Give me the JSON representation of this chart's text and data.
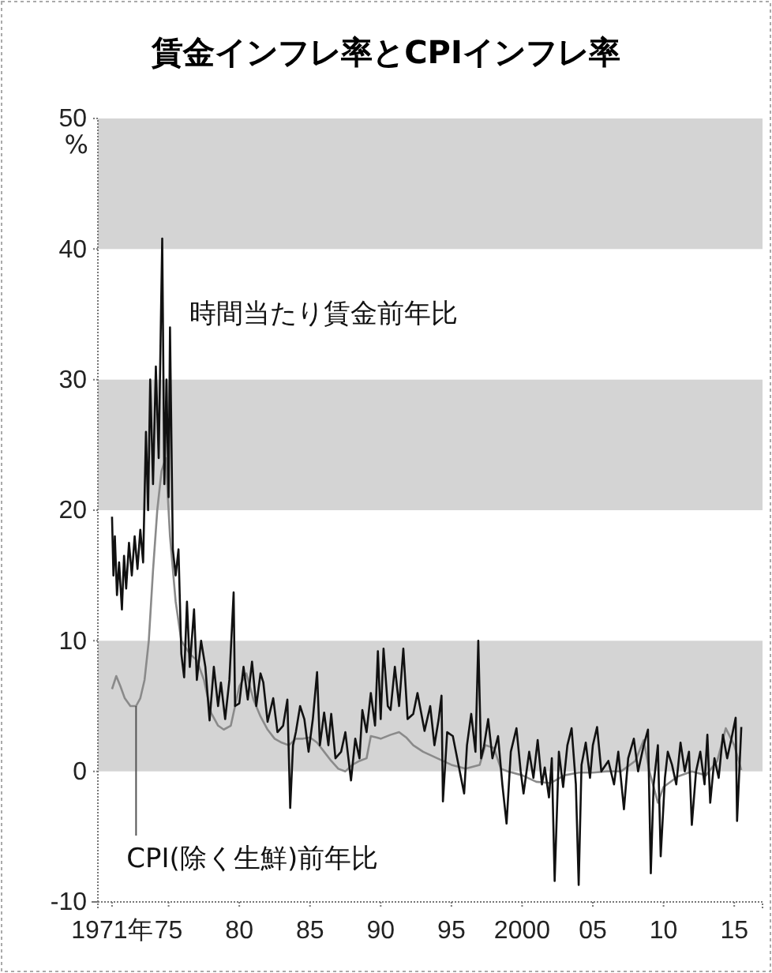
{
  "chart_data": {
    "type": "line",
    "title": "賃金インフレ率とCPIインフレ率",
    "ylabel": "%",
    "xlim": [
      1970,
      2017
    ],
    "xticks": [
      {
        "value": 1971,
        "label": "1971年"
      },
      {
        "value": 1975,
        "label": "75"
      },
      {
        "value": 1980,
        "label": "80"
      },
      {
        "value": 1985,
        "label": "85"
      },
      {
        "value": 1990,
        "label": "90"
      },
      {
        "value": 1995,
        "label": "95"
      },
      {
        "value": 2000,
        "label": "2000"
      },
      {
        "value": 2005,
        "label": "05"
      },
      {
        "value": 2010,
        "label": "10"
      },
      {
        "value": 2015,
        "label": "15"
      }
    ],
    "ylim": [
      -10,
      50
    ],
    "yticks": [
      -10,
      0,
      10,
      20,
      30,
      40,
      50
    ],
    "bands": [
      {
        "axis": "y",
        "from": 40,
        "to": 50,
        "color": "#d4d4d4"
      },
      {
        "axis": "y",
        "from": 20,
        "to": 30,
        "color": "#d4d4d4"
      },
      {
        "axis": "y",
        "from": 0,
        "to": 10,
        "color": "#d4d4d4"
      }
    ],
    "grid": false,
    "marker": "none",
    "line_style": "solid",
    "series": [
      {
        "color": "#8a8a8a",
        "x": [
          1971.0,
          1971.3,
          1971.6,
          1971.9,
          1972.3,
          1972.7,
          1973.0,
          1973.3,
          1973.6,
          1973.9,
          1974.2,
          1974.5,
          1974.8,
          1975.1,
          1975.5,
          1975.9,
          1976.5,
          1977.0,
          1977.5,
          1978.0,
          1978.5,
          1978.9,
          1979.4,
          1980.0,
          1980.5,
          1981.0,
          1981.5,
          1982.0,
          1982.5,
          1983.0,
          1983.5,
          1984.0,
          1984.5,
          1985.0,
          1985.5,
          1986.0,
          1986.5,
          1987.0,
          1987.5,
          1988.0,
          1988.5,
          1989.0,
          1989.3,
          1989.7,
          1990.0,
          1990.7,
          1991.3,
          1991.8,
          1992.3,
          1993.0,
          1994.0,
          1995.0,
          1996.0,
          1997.0,
          1997.4,
          1998.0,
          1998.5,
          1999.0,
          2000.0,
          2001.0,
          2002.0,
          2003.0,
          2004.0,
          2005.0,
          2006.0,
          2007.0,
          2008.0,
          2008.6,
          2009.0,
          2009.6,
          2010.0,
          2011.0,
          2012.0,
          2013.0,
          2013.8,
          2014.4,
          2015.0,
          2015.5
        ],
        "values": [
          6.3,
          7.3,
          6.5,
          5.6,
          5.0,
          5.0,
          5.6,
          7,
          10,
          15.4,
          20,
          23,
          24,
          18,
          13,
          10,
          9,
          8.5,
          7,
          4.5,
          3.5,
          3.2,
          3.5,
          6.5,
          7.5,
          5.5,
          4.2,
          3.2,
          2.5,
          2.2,
          2.0,
          2.5,
          2.5,
          2.6,
          2.2,
          1.5,
          0.8,
          0.2,
          0.0,
          0.5,
          0.8,
          1.0,
          2.7,
          2.6,
          2.5,
          2.8,
          3.0,
          2.6,
          2.0,
          1.5,
          1.0,
          0.5,
          0.2,
          0.5,
          2.0,
          1.8,
          0.2,
          0.0,
          -0.3,
          -0.8,
          -0.9,
          -0.3,
          -0.1,
          -0.1,
          0.0,
          0.0,
          0.8,
          2.4,
          0.0,
          -2.4,
          -1.2,
          -0.4,
          0.0,
          -0.3,
          0.8,
          3.3,
          2.0,
          0.1
        ]
      },
      {
        "color": "#111111",
        "x": [
          1971.0,
          1971.1,
          1971.2,
          1971.35,
          1971.5,
          1971.7,
          1971.85,
          1972.0,
          1972.2,
          1972.4,
          1972.6,
          1972.8,
          1973.0,
          1973.2,
          1973.4,
          1973.55,
          1973.7,
          1973.9,
          1974.1,
          1974.3,
          1974.55,
          1974.7,
          1974.85,
          1975.0,
          1975.1,
          1975.3,
          1975.5,
          1975.7,
          1975.9,
          1976.1,
          1976.3,
          1976.5,
          1976.8,
          1977.0,
          1977.3,
          1977.6,
          1977.9,
          1978.2,
          1978.5,
          1978.7,
          1979.0,
          1979.3,
          1979.6,
          1979.7,
          1980.0,
          1980.3,
          1980.6,
          1980.9,
          1981.2,
          1981.5,
          1981.7,
          1982.0,
          1982.4,
          1982.7,
          1983.1,
          1983.4,
          1983.6,
          1983.8,
          1984.0,
          1984.3,
          1984.6,
          1984.9,
          1985.2,
          1985.5,
          1985.7,
          1986.0,
          1986.3,
          1986.5,
          1986.8,
          1987.2,
          1987.5,
          1987.9,
          1988.2,
          1988.5,
          1988.7,
          1989.0,
          1989.3,
          1989.6,
          1989.8,
          1990.0,
          1990.2,
          1990.5,
          1990.7,
          1991.0,
          1991.3,
          1991.6,
          1991.9,
          1992.3,
          1992.6,
          1993.1,
          1993.5,
          1993.8,
          1994.1,
          1994.3,
          1994.4,
          1994.7,
          1995.1,
          1995.5,
          1995.9,
          1996.1,
          1996.4,
          1996.7,
          1996.9,
          1997.1,
          1997.3,
          1997.6,
          1997.9,
          1998.3,
          1998.6,
          1998.9,
          1999.2,
          1999.6,
          1999.9,
          2000.1,
          2000.5,
          2000.8,
          2001.1,
          2001.4,
          2001.6,
          2001.9,
          2002.1,
          2002.3,
          2002.6,
          2002.9,
          2003.2,
          2003.5,
          2003.8,
          2004.0,
          2004.2,
          2004.5,
          2004.8,
          2005.0,
          2005.3,
          2005.6,
          2006.1,
          2006.5,
          2006.8,
          2007.2,
          2007.5,
          2007.9,
          2008.2,
          2008.6,
          2008.9,
          2009.1,
          2009.3,
          2009.6,
          2009.8,
          2010.1,
          2010.3,
          2010.6,
          2010.9,
          2011.2,
          2011.5,
          2011.8,
          2012.0,
          2012.3,
          2012.6,
          2012.9,
          2013.1,
          2013.3,
          2013.6,
          2013.9,
          2014.2,
          2014.5,
          2014.8,
          2015.1,
          2015.2,
          2015.5
        ],
        "values": [
          19.5,
          15,
          18,
          13.5,
          16,
          12.4,
          16.5,
          14,
          17.5,
          15,
          18,
          15.5,
          18.5,
          16,
          26,
          20,
          30,
          22,
          31,
          24,
          40.8,
          22,
          30,
          21,
          34,
          17,
          15,
          17,
          9,
          7.2,
          13,
          8,
          12.4,
          7,
          10,
          8,
          3.9,
          8,
          5,
          6.8,
          4,
          7,
          13.7,
          5,
          5.2,
          8,
          5.5,
          8.4,
          5,
          7.5,
          6.8,
          3.8,
          5.6,
          3,
          3.5,
          5.5,
          -2.8,
          2,
          3,
          5,
          4,
          1.5,
          4,
          7.6,
          2,
          4.5,
          2,
          4.4,
          1,
          1.5,
          3,
          -0.7,
          2.5,
          1,
          4.7,
          3,
          6,
          3.5,
          9.2,
          4,
          9.4,
          5,
          4.7,
          8,
          5,
          9.4,
          4,
          4.4,
          6,
          3.1,
          5,
          2,
          4,
          5.8,
          -2.3,
          3,
          2.7,
          0.5,
          -1.7,
          2,
          4.4,
          1.5,
          10,
          1,
          1.9,
          4,
          1,
          2.7,
          -1,
          -4,
          1.5,
          3.3,
          0,
          -1.7,
          1.5,
          -0.5,
          2.4,
          -1,
          0.3,
          -2,
          1,
          -8.4,
          1.5,
          -1.2,
          2,
          3.3,
          -1,
          -8.7,
          0.5,
          2.2,
          -0.5,
          2,
          3.4,
          0,
          0.8,
          -1,
          1.5,
          -2.9,
          1,
          2.5,
          0,
          2,
          3.2,
          -7.8,
          -1,
          2,
          -6.5,
          -0.5,
          1.5,
          0.5,
          -1,
          2.2,
          0,
          1.5,
          -4.1,
          0,
          1.5,
          -1,
          2.8,
          -2.4,
          1,
          -0.5,
          2.8,
          1,
          2.5,
          4.1,
          -3.8,
          3.4
        ]
      }
    ],
    "annotations": [
      "時間当たり賃金前年比",
      {
        "text": "CPI(除く生鮮)前年比",
        "x": 1972.7,
        "y": 5.0
      }
    ]
  }
}
